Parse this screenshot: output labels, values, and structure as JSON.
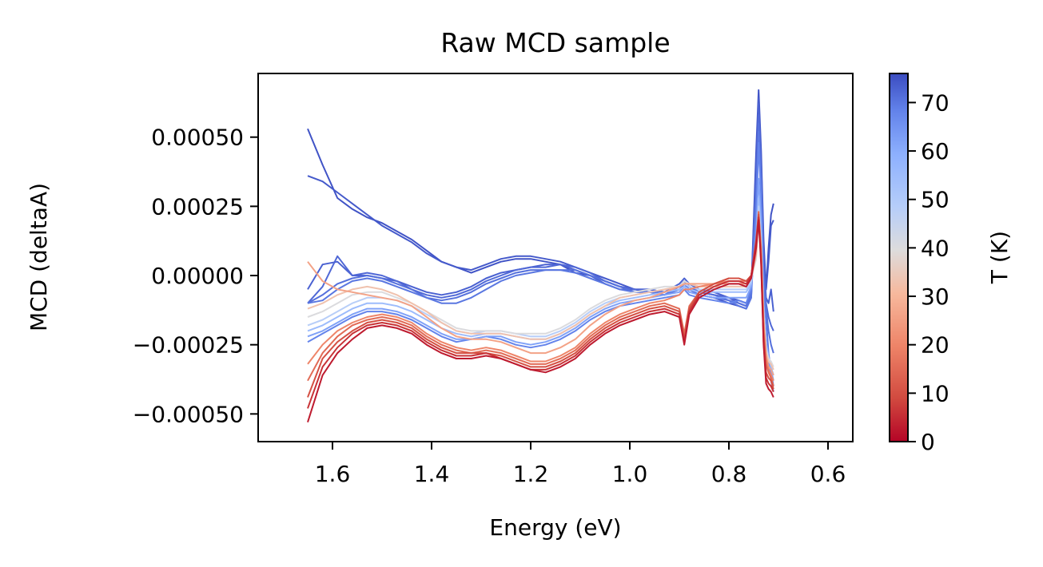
{
  "chart_data": {
    "type": "line",
    "title": "Raw MCD sample",
    "xlabel": "Energy (eV)",
    "ylabel": "MCD (deltaA)",
    "xlim": [
      1.75,
      0.55
    ],
    "ylim": [
      -0.0006,
      0.00073
    ],
    "x_reversed": true,
    "x_ticks": [
      1.6,
      1.4,
      1.2,
      1.0,
      0.8,
      0.6
    ],
    "x_tick_labels": [
      "1.6",
      "1.4",
      "1.2",
      "1.0",
      "0.8",
      "0.6"
    ],
    "y_ticks": [
      -0.0005,
      -0.00025,
      0.0,
      0.00025,
      0.0005
    ],
    "y_tick_labels": [
      "−0.00050",
      "−0.00025",
      "0.00000",
      "0.00025",
      "0.00050"
    ],
    "grid": false,
    "colormap": "coolwarm_r",
    "colorbar": {
      "label": "T (K)",
      "range": [
        0,
        76
      ],
      "ticks": [
        0,
        10,
        20,
        30,
        40,
        50,
        60,
        70
      ],
      "tick_labels": [
        "0",
        "10",
        "20",
        "30",
        "40",
        "50",
        "60",
        "70"
      ]
    },
    "x": [
      1.65,
      1.62,
      1.59,
      1.56,
      1.53,
      1.5,
      1.47,
      1.44,
      1.41,
      1.38,
      1.35,
      1.32,
      1.29,
      1.26,
      1.23,
      1.2,
      1.17,
      1.14,
      1.11,
      1.08,
      1.05,
      1.02,
      0.99,
      0.96,
      0.93,
      0.9,
      0.89,
      0.88,
      0.86,
      0.83,
      0.8,
      0.78,
      0.765,
      0.755,
      0.745,
      0.74,
      0.735,
      0.73,
      0.725,
      0.72,
      0.715,
      0.71
    ],
    "series": [
      {
        "temperature": 75,
        "values": [
          0.00053,
          0.0004,
          0.00028,
          0.00024,
          0.00021,
          0.00019,
          0.00016,
          0.00013,
          9e-05,
          5e-05,
          3e-05,
          1e-05,
          3e-05,
          5e-05,
          6e-05,
          6e-05,
          5e-05,
          4e-05,
          1e-05,
          0.0,
          -2e-05,
          -4e-05,
          -5e-05,
          -5e-05,
          -6e-05,
          -4e-05,
          -2e-05,
          -4e-05,
          -6e-05,
          -7e-05,
          -8e-05,
          -9e-05,
          -0.0001,
          -6e-05,
          0.00045,
          0.00067,
          0.00045,
          0.00013,
          -5e-05,
          0.0001,
          0.00022,
          0.00026
        ]
      },
      {
        "temperature": 74,
        "values": [
          0.00036,
          0.00034,
          0.0003,
          0.00026,
          0.00022,
          0.00018,
          0.00015,
          0.00012,
          8e-05,
          5e-05,
          3e-05,
          2e-05,
          4e-05,
          6e-05,
          7e-05,
          7e-05,
          6e-05,
          5e-05,
          3e-05,
          1e-05,
          -1e-05,
          -3e-05,
          -5e-05,
          -6e-05,
          -7e-05,
          -5e-05,
          -4e-05,
          -5e-05,
          -7e-05,
          -8e-05,
          -0.0001,
          -0.00011,
          -0.00012,
          -8e-05,
          0.00042,
          0.00064,
          0.00042,
          0.0001,
          -5e-05,
          5e-05,
          0.00018,
          0.0002
        ]
      },
      {
        "temperature": 73,
        "values": [
          -5e-05,
          4e-05,
          5e-05,
          0.0,
          0.0,
          -1e-05,
          -2e-05,
          -4e-05,
          -6e-05,
          -7e-05,
          -6e-05,
          -4e-05,
          -1e-05,
          1e-05,
          2e-05,
          3e-05,
          4e-05,
          4e-05,
          2e-05,
          0.0,
          -3e-05,
          -5e-05,
          -5e-05,
          -6e-05,
          -6e-05,
          -3e-05,
          -1e-05,
          -3e-05,
          -5e-05,
          -6e-05,
          -8e-05,
          -9e-05,
          -0.0001,
          -5e-05,
          0.00035,
          0.00062,
          0.0004,
          5e-05,
          -8e-05,
          -0.0001,
          -5e-05,
          -0.00013
        ]
      },
      {
        "temperature": 72,
        "values": [
          -0.0001,
          -4e-05,
          7e-05,
          0.0,
          1e-05,
          0.0,
          -2e-05,
          -5e-05,
          -7e-05,
          -8e-05,
          -7e-05,
          -5e-05,
          -2e-05,
          0.0,
          2e-05,
          3e-05,
          3e-05,
          4e-05,
          3e-05,
          1e-05,
          -2e-05,
          -4e-05,
          -5e-05,
          -5e-05,
          -6e-05,
          -4e-05,
          -2e-05,
          -4e-05,
          -6e-05,
          -7e-05,
          -8e-05,
          -0.0001,
          -0.00011,
          -6e-05,
          0.00032,
          0.00058,
          0.00038,
          4e-05,
          -0.0001,
          -0.00015,
          -0.00018,
          -0.0002
        ]
      },
      {
        "temperature": 71,
        "values": [
          -0.0001,
          -7e-05,
          -3e-05,
          -1e-05,
          0.0,
          -1e-05,
          -3e-05,
          -5e-05,
          -8e-05,
          -9e-05,
          -8e-05,
          -6e-05,
          -3e-05,
          -1e-05,
          1e-05,
          2e-05,
          2e-05,
          2e-05,
          2e-05,
          0.0,
          -2e-05,
          -4e-05,
          -6e-05,
          -6e-05,
          -7e-05,
          -4e-05,
          -3e-05,
          -4e-05,
          -6e-05,
          -7e-05,
          -9e-05,
          -0.0001,
          -0.00011,
          -7e-05,
          0.0003,
          0.00055,
          0.00035,
          0.0,
          -0.00012,
          -0.0002,
          -0.00025,
          -0.00028
        ]
      },
      {
        "temperature": 70,
        "values": [
          -0.0001,
          -9e-05,
          -5e-05,
          -2e-05,
          -1e-05,
          -2e-05,
          -4e-05,
          -6e-05,
          -8e-05,
          -0.0001,
          -0.0001,
          -8e-05,
          -5e-05,
          -2e-05,
          0.0,
          1e-05,
          2e-05,
          2e-05,
          1e-05,
          -1e-05,
          -3e-05,
          -5e-05,
          -6e-05,
          -6e-05,
          -7e-05,
          -5e-05,
          -3e-05,
          -5e-05,
          -7e-05,
          -8e-05,
          -9e-05,
          -0.00011,
          -0.00012,
          -8e-05,
          0.00028,
          0.00052,
          0.00032,
          -3e-05,
          -0.00015,
          -0.00028,
          -0.00035,
          -0.0004
        ]
      },
      {
        "temperature": 68,
        "values": [
          -0.00024,
          -0.00021,
          -0.00018,
          -0.00015,
          -0.00013,
          -0.00013,
          -0.00014,
          -0.00016,
          -0.00019,
          -0.00022,
          -0.00024,
          -0.00023,
          -0.00022,
          -0.00023,
          -0.00025,
          -0.00026,
          -0.00025,
          -0.00023,
          -0.0002,
          -0.00016,
          -0.00013,
          -0.00011,
          -0.0001,
          -9e-05,
          -8e-05,
          -7e-05,
          -5e-05,
          -7e-05,
          -8e-05,
          -9e-05,
          -0.0001,
          -9e-05,
          -0.0001,
          -5e-05,
          0.0002,
          0.00048,
          0.00028,
          -0.0001,
          -0.00025,
          -0.0003,
          -0.00038,
          -0.00042
        ]
      },
      {
        "temperature": 62,
        "values": [
          -0.00022,
          -0.0002,
          -0.00017,
          -0.00014,
          -0.00012,
          -0.00012,
          -0.00013,
          -0.00015,
          -0.00018,
          -0.00021,
          -0.00023,
          -0.00023,
          -0.00022,
          -0.00022,
          -0.00024,
          -0.00025,
          -0.00024,
          -0.00022,
          -0.00019,
          -0.00015,
          -0.00012,
          -0.0001,
          -9e-05,
          -8e-05,
          -7e-05,
          -6e-05,
          -4e-05,
          -6e-05,
          -7e-05,
          -8e-05,
          -8e-05,
          -8e-05,
          -8e-05,
          -4e-05,
          0.00015,
          0.00035,
          0.0002,
          -0.0001,
          -0.00024,
          -0.00029,
          -0.00034,
          -0.00038
        ]
      },
      {
        "temperature": 55,
        "values": [
          -0.0002,
          -0.00018,
          -0.00015,
          -0.00012,
          -0.0001,
          -0.0001,
          -0.00011,
          -0.00013,
          -0.00016,
          -0.00019,
          -0.00021,
          -0.00022,
          -0.00021,
          -0.00021,
          -0.00022,
          -0.00023,
          -0.00023,
          -0.00021,
          -0.00018,
          -0.00014,
          -0.00011,
          -9e-05,
          -8e-05,
          -7e-05,
          -6e-05,
          -5e-05,
          -4e-05,
          -5e-05,
          -6e-05,
          -6e-05,
          -6e-05,
          -6e-05,
          -6e-05,
          -3e-05,
          0.0001,
          0.00028,
          0.00015,
          -0.00012,
          -0.00025,
          -0.0003,
          -0.00033,
          -0.00036
        ]
      },
      {
        "temperature": 48,
        "values": [
          -0.00018,
          -0.00016,
          -0.00013,
          -0.0001,
          -8e-05,
          -8e-05,
          -9e-05,
          -0.00011,
          -0.00014,
          -0.00017,
          -0.0002,
          -0.00021,
          -0.0002,
          -0.0002,
          -0.00021,
          -0.00022,
          -0.00022,
          -0.0002,
          -0.00017,
          -0.00013,
          -0.0001,
          -8e-05,
          -7e-05,
          -6e-05,
          -5e-05,
          -4e-05,
          -3e-05,
          -4e-05,
          -5e-05,
          -5e-05,
          -5e-05,
          -5e-05,
          -5e-05,
          -2e-05,
          8e-05,
          0.00025,
          0.00012,
          -0.00013,
          -0.00026,
          -0.0003,
          -0.00032,
          -0.00034
        ]
      },
      {
        "temperature": 40,
        "values": [
          -0.00015,
          -0.00013,
          -0.0001,
          -7e-05,
          -6e-05,
          -6e-05,
          -8e-05,
          -0.0001,
          -0.00013,
          -0.00016,
          -0.00019,
          -0.0002,
          -0.0002,
          -0.0002,
          -0.00021,
          -0.00021,
          -0.00021,
          -0.00019,
          -0.00016,
          -0.00012,
          -9e-05,
          -7e-05,
          -6e-05,
          -5e-05,
          -4e-05,
          -4e-05,
          -2e-05,
          -3e-05,
          -4e-05,
          -4e-05,
          -4e-05,
          -4e-05,
          -4e-05,
          -1e-05,
          6e-05,
          0.00022,
          0.0001,
          -0.00014,
          -0.00027,
          -0.0003,
          -0.00031,
          -0.00033
        ]
      },
      {
        "temperature": 33,
        "values": [
          -0.00012,
          -0.0001,
          -7e-05,
          -5e-05,
          -4e-05,
          -5e-05,
          -7e-05,
          -0.0001,
          -0.00013,
          -0.00017,
          -0.0002,
          -0.00021,
          -0.00021,
          -0.00021,
          -0.00022,
          -0.00023,
          -0.00023,
          -0.00021,
          -0.00018,
          -0.00014,
          -0.00011,
          -8e-05,
          -7e-05,
          -6e-05,
          -5e-05,
          -4e-05,
          -3e-05,
          -3e-05,
          -4e-05,
          -4e-05,
          -4e-05,
          -4e-05,
          -4e-05,
          -1e-05,
          8e-05,
          0.00023,
          0.00011,
          -0.00015,
          -0.00028,
          -0.00031,
          -0.00032,
          -0.00034
        ]
      },
      {
        "temperature": 26,
        "values": [
          5e-05,
          -2e-05,
          -5e-05,
          -6e-05,
          -7e-05,
          -8e-05,
          -9e-05,
          -0.00011,
          -0.00015,
          -0.00019,
          -0.00022,
          -0.00023,
          -0.00023,
          -0.00024,
          -0.00026,
          -0.00028,
          -0.00028,
          -0.00026,
          -0.00023,
          -0.00018,
          -0.00014,
          -0.00011,
          -9e-05,
          -8e-05,
          -6e-05,
          -4e-05,
          -3e-05,
          -3e-05,
          -3e-05,
          -3e-05,
          -3e-05,
          -3e-05,
          -3e-05,
          -1e-05,
          8e-05,
          0.00022,
          0.0001,
          -0.00016,
          -0.00029,
          -0.00033,
          -0.00034,
          -0.00036
        ]
      },
      {
        "temperature": 20,
        "values": [
          -0.00032,
          -0.00025,
          -0.0002,
          -0.00017,
          -0.00015,
          -0.00014,
          -0.00015,
          -0.00017,
          -0.00021,
          -0.00024,
          -0.00026,
          -0.00027,
          -0.00026,
          -0.00027,
          -0.00029,
          -0.00031,
          -0.00031,
          -0.00029,
          -0.00026,
          -0.00021,
          -0.00017,
          -0.00014,
          -0.00012,
          -0.0001,
          -9e-05,
          -7e-05,
          -5e-05,
          -5e-05,
          -4e-05,
          -3e-05,
          -2e-05,
          -2e-05,
          -2e-05,
          0.0,
          0.0001,
          0.00022,
          0.0001,
          -0.00018,
          -0.0003,
          -0.00034,
          -0.00036,
          -0.00038
        ]
      },
      {
        "temperature": 15,
        "values": [
          -0.00038,
          -0.00028,
          -0.00022,
          -0.00018,
          -0.00016,
          -0.00015,
          -0.00016,
          -0.00018,
          -0.00022,
          -0.00025,
          -0.00027,
          -0.00028,
          -0.00027,
          -0.00028,
          -0.0003,
          -0.00032,
          -0.00032,
          -0.0003,
          -0.00027,
          -0.00022,
          -0.00018,
          -0.00015,
          -0.00013,
          -0.00011,
          -0.0001,
          -0.00012,
          -0.00021,
          -0.00011,
          -6e-05,
          -3e-05,
          -1e-05,
          -1e-05,
          -2e-05,
          0.0,
          0.00012,
          0.00023,
          8e-05,
          -0.0002,
          -0.00032,
          -0.00035,
          -0.00037,
          -0.0004
        ]
      },
      {
        "temperature": 10,
        "values": [
          -0.00044,
          -0.0003,
          -0.00024,
          -0.0002,
          -0.00017,
          -0.00016,
          -0.00017,
          -0.00019,
          -0.00023,
          -0.00026,
          -0.00028,
          -0.00028,
          -0.00028,
          -0.00029,
          -0.00031,
          -0.00033,
          -0.00033,
          -0.00031,
          -0.00028,
          -0.00023,
          -0.00019,
          -0.00016,
          -0.00014,
          -0.00012,
          -0.00011,
          -0.00013,
          -0.00023,
          -0.00012,
          -6e-05,
          -3e-05,
          -1e-05,
          -1e-05,
          -2e-05,
          0.0,
          0.00013,
          0.00022,
          6e-05,
          -0.00022,
          -0.00035,
          -0.00037,
          -0.00038,
          -0.00041
        ]
      },
      {
        "temperature": 6,
        "values": [
          -0.00048,
          -0.00033,
          -0.00026,
          -0.00021,
          -0.00018,
          -0.00017,
          -0.00018,
          -0.0002,
          -0.00024,
          -0.00027,
          -0.00029,
          -0.00029,
          -0.00028,
          -0.0003,
          -0.00032,
          -0.00034,
          -0.00034,
          -0.00032,
          -0.00029,
          -0.00024,
          -0.0002,
          -0.00017,
          -0.00015,
          -0.00013,
          -0.00012,
          -0.00014,
          -0.00024,
          -0.00013,
          -7e-05,
          -4e-05,
          -2e-05,
          -2e-05,
          -3e-05,
          0.0,
          0.00012,
          0.00021,
          5e-05,
          -0.00024,
          -0.00037,
          -0.00039,
          -0.0004,
          -0.00042
        ]
      },
      {
        "temperature": 3,
        "values": [
          -0.00053,
          -0.00036,
          -0.00028,
          -0.00023,
          -0.00019,
          -0.00018,
          -0.00019,
          -0.00021,
          -0.00025,
          -0.00028,
          -0.0003,
          -0.0003,
          -0.00029,
          -0.0003,
          -0.00032,
          -0.00034,
          -0.00035,
          -0.00033,
          -0.0003,
          -0.00025,
          -0.00021,
          -0.00018,
          -0.00016,
          -0.00014,
          -0.00013,
          -0.00015,
          -0.00025,
          -0.00014,
          -8e-05,
          -5e-05,
          -3e-05,
          -3e-05,
          -4e-05,
          -1e-05,
          0.0001,
          0.0002,
          4e-05,
          -0.00025,
          -0.00039,
          -0.00041,
          -0.00042,
          -0.00044
        ]
      }
    ]
  }
}
